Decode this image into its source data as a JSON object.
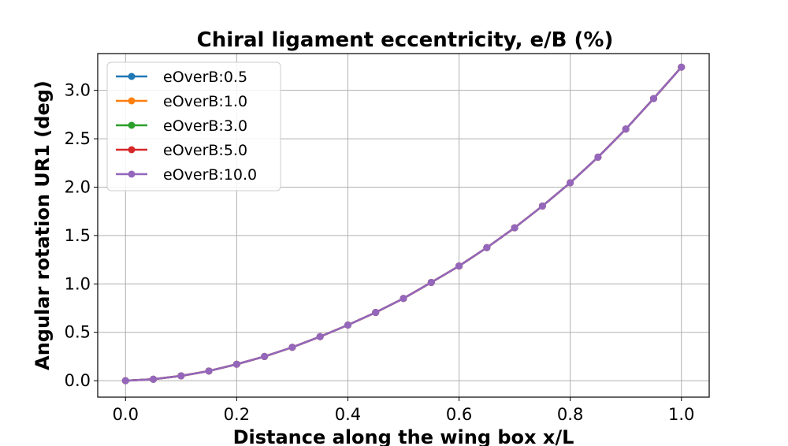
{
  "chart_data": {
    "type": "line",
    "title": "Chiral ligament eccentricity, e/B (%)",
    "xlabel": "Distance along the wing box x/L",
    "ylabel": "Angular rotation UR1 (deg)",
    "xlim": [
      -0.05,
      1.05
    ],
    "ylim": [
      -0.17,
      3.38
    ],
    "xticks": [
      0.0,
      0.2,
      0.4,
      0.6,
      0.8,
      1.0
    ],
    "yticks": [
      0.0,
      0.5,
      1.0,
      1.5,
      2.0,
      2.5,
      3.0
    ],
    "xtick_labels": [
      "0.0",
      "0.2",
      "0.4",
      "0.6",
      "0.8",
      "1.0"
    ],
    "ytick_labels": [
      "0.0",
      "0.5",
      "1.0",
      "1.5",
      "2.0",
      "2.5",
      "3.0"
    ],
    "grid": true,
    "legend_position": "upper-left",
    "x": [
      0.0,
      0.05,
      0.1,
      0.15,
      0.2,
      0.25,
      0.3,
      0.35,
      0.4,
      0.45,
      0.5,
      0.55,
      0.6,
      0.65,
      0.7,
      0.75,
      0.8,
      0.85,
      0.9,
      0.95,
      1.0
    ],
    "series": [
      {
        "name": "eOverB:0.5",
        "color": "#1f77b4",
        "values": [
          0.0,
          0.015,
          0.05,
          0.1,
          0.17,
          0.25,
          0.345,
          0.455,
          0.575,
          0.705,
          0.85,
          1.015,
          1.185,
          1.375,
          1.58,
          1.805,
          2.045,
          2.31,
          2.6,
          2.915,
          3.24
        ]
      },
      {
        "name": "eOverB:1.0",
        "color": "#ff7f0e",
        "values": [
          0.0,
          0.015,
          0.05,
          0.1,
          0.17,
          0.25,
          0.345,
          0.455,
          0.575,
          0.705,
          0.85,
          1.015,
          1.185,
          1.375,
          1.58,
          1.805,
          2.045,
          2.31,
          2.6,
          2.915,
          3.24
        ]
      },
      {
        "name": "eOverB:3.0",
        "color": "#2ca02c",
        "values": [
          0.0,
          0.015,
          0.05,
          0.1,
          0.17,
          0.25,
          0.345,
          0.455,
          0.575,
          0.705,
          0.85,
          1.015,
          1.185,
          1.375,
          1.58,
          1.805,
          2.045,
          2.31,
          2.6,
          2.915,
          3.24
        ]
      },
      {
        "name": "eOverB:5.0",
        "color": "#d62728",
        "values": [
          0.0,
          0.015,
          0.05,
          0.1,
          0.17,
          0.25,
          0.345,
          0.455,
          0.575,
          0.705,
          0.85,
          1.015,
          1.185,
          1.375,
          1.58,
          1.805,
          2.045,
          2.31,
          2.6,
          2.915,
          3.24
        ]
      },
      {
        "name": "eOverB:10.0",
        "color": "#9467bd",
        "values": [
          0.0,
          0.015,
          0.05,
          0.1,
          0.17,
          0.25,
          0.345,
          0.455,
          0.575,
          0.705,
          0.85,
          1.015,
          1.185,
          1.375,
          1.58,
          1.805,
          2.045,
          2.31,
          2.6,
          2.915,
          3.24
        ]
      }
    ]
  }
}
